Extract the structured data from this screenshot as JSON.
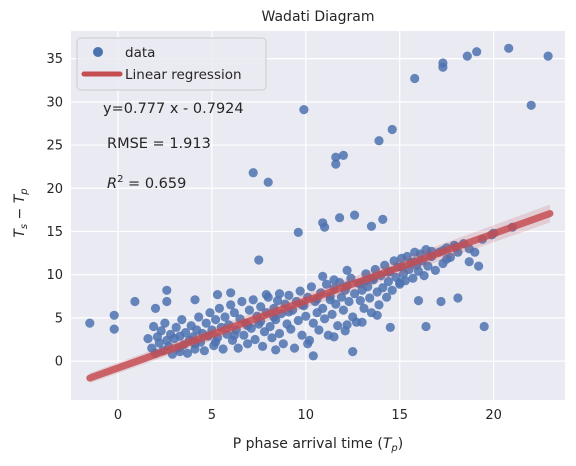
{
  "chart_data": {
    "type": "scatter",
    "title": "Wadati Diagram",
    "xlabel_main": "P phase arrival time (",
    "xlabel_sym": "T",
    "xlabel_sub": "p",
    "xlabel_end": ")",
    "ylabel_t1": "T",
    "ylabel_s1": "s",
    "ylabel_minus": " − ",
    "ylabel_t2": "T",
    "ylabel_s2": "p",
    "xlim": [
      -2.5,
      23.8
    ],
    "ylim": [
      -4.5,
      38.2
    ],
    "xticks": [
      0,
      5,
      10,
      15,
      20
    ],
    "yticks": [
      0,
      5,
      10,
      15,
      20,
      25,
      30,
      35
    ],
    "grid": true,
    "legend": {
      "placement": "top-left",
      "entries": [
        {
          "label": "data",
          "kind": "marker",
          "color": "#4c72b0"
        },
        {
          "label": "Linear regression",
          "kind": "line",
          "color": "#c44e52"
        }
      ]
    },
    "annotations": {
      "equation": "y=0.777 x - 0.7924",
      "rmse": "RMSE = 1.913",
      "r2_symbol": "R",
      "r2_exp": "2",
      "r2_value": " = 0.659"
    },
    "regression": {
      "slope": 0.777,
      "intercept": -0.7924,
      "x_range": [
        -1.5,
        23
      ]
    },
    "colors": {
      "points": "#4c72b0",
      "line": "#c44e52",
      "background": "#eaeaf2",
      "grid": "#ffffff"
    },
    "series": [
      {
        "name": "data",
        "points": [
          [
            -1.5,
            4.4
          ],
          [
            -0.2,
            5.3
          ],
          [
            -0.2,
            3.7
          ],
          [
            0.9,
            6.9
          ],
          [
            7.2,
            21.8
          ],
          [
            8.0,
            20.7
          ],
          [
            9.6,
            14.9
          ],
          [
            9.9,
            29.1
          ],
          [
            10.9,
            16.0
          ],
          [
            11.0,
            15.5
          ],
          [
            11.6,
            22.8
          ],
          [
            11.6,
            23.6
          ],
          [
            11.8,
            16.6
          ],
          [
            12.0,
            23.8
          ],
          [
            12.6,
            16.9
          ],
          [
            13.5,
            15.6
          ],
          [
            13.9,
            25.5
          ],
          [
            14.1,
            16.4
          ],
          [
            14.6,
            26.8
          ],
          [
            15.8,
            32.7
          ],
          [
            17.3,
            34.5
          ],
          [
            17.3,
            34.0
          ],
          [
            18.6,
            35.3
          ],
          [
            19.1,
            35.8
          ],
          [
            20.8,
            36.2
          ],
          [
            22.0,
            29.6
          ],
          [
            22.9,
            35.3
          ],
          [
            21.0,
            15.5
          ],
          [
            20.0,
            14.8
          ],
          [
            19.9,
            14.6
          ],
          [
            19.5,
            4.0
          ],
          [
            18.1,
            7.3
          ],
          [
            17.2,
            6.9
          ],
          [
            16.4,
            4.0
          ],
          [
            16.0,
            7.0
          ],
          [
            7.5,
            11.7
          ],
          [
            2.6,
            8.2
          ],
          [
            2.0,
            6.1
          ],
          [
            2.6,
            6.9
          ],
          [
            4.1,
            7.1
          ],
          [
            5.3,
            7.7
          ],
          [
            6.0,
            7.9
          ],
          [
            7.9,
            7.7
          ],
          [
            8.6,
            7.8
          ],
          [
            10.9,
            9.8
          ],
          [
            11.5,
            9.4
          ],
          [
            12.2,
            10.5
          ],
          [
            13.2,
            9.3
          ],
          [
            15.0,
            9.1
          ],
          [
            16.7,
            12.7
          ],
          [
            17.5,
            11.8
          ],
          [
            18.7,
            11.5
          ],
          [
            19.2,
            11.0
          ],
          [
            10.4,
            0.6
          ],
          [
            12.5,
            1.1
          ],
          [
            8.4,
            1.3
          ],
          [
            11.5,
            2.8
          ],
          [
            10.1,
            2.0
          ],
          [
            14.5,
            3.9
          ],
          [
            13.0,
            4.5
          ],
          [
            13.8,
            5.3
          ],
          [
            12.2,
            4.2
          ],
          [
            1.6,
            2.6
          ],
          [
            1.8,
            1.5
          ],
          [
            1.9,
            4.0
          ],
          [
            2.0,
            0.9
          ],
          [
            2.1,
            2.8
          ],
          [
            2.2,
            2.1
          ],
          [
            2.3,
            3.5
          ],
          [
            2.4,
            1.2
          ],
          [
            2.5,
            4.4
          ],
          [
            2.6,
            2.4
          ],
          [
            2.7,
            1.7
          ],
          [
            2.8,
            3.1
          ],
          [
            2.9,
            0.8
          ],
          [
            3.0,
            2.6
          ],
          [
            3.1,
            3.9
          ],
          [
            3.2,
            1.5
          ],
          [
            3.3,
            2.9
          ],
          [
            3.4,
            4.8
          ],
          [
            3.5,
            1.9
          ],
          [
            3.6,
            3.3
          ],
          [
            3.7,
            0.9
          ],
          [
            3.8,
            2.4
          ],
          [
            3.9,
            4.1
          ],
          [
            4.0,
            2.8
          ],
          [
            4.1,
            1.4
          ],
          [
            4.2,
            3.6
          ],
          [
            4.3,
            5.1
          ],
          [
            4.4,
            2.2
          ],
          [
            4.5,
            3.2
          ],
          [
            4.6,
            1.2
          ],
          [
            4.7,
            4.4
          ],
          [
            4.8,
            2.9
          ],
          [
            4.9,
            5.6
          ],
          [
            5.0,
            3.6
          ],
          [
            5.1,
            1.8
          ],
          [
            5.2,
            4.8
          ],
          [
            5.3,
            2.7
          ],
          [
            5.4,
            6.1
          ],
          [
            5.5,
            3.9
          ],
          [
            5.6,
            1.4
          ],
          [
            5.7,
            5.1
          ],
          [
            5.8,
            3.1
          ],
          [
            5.9,
            4.2
          ],
          [
            6.0,
            6.5
          ],
          [
            6.1,
            2.4
          ],
          [
            6.2,
            5.6
          ],
          [
            6.3,
            3.6
          ],
          [
            6.4,
            1.5
          ],
          [
            6.5,
            4.9
          ],
          [
            6.6,
            6.9
          ],
          [
            6.7,
            3.0
          ],
          [
            6.8,
            4.4
          ],
          [
            6.9,
            2.0
          ],
          [
            7.0,
            5.9
          ],
          [
            7.1,
            3.8
          ],
          [
            7.2,
            7.1
          ],
          [
            7.3,
            2.5
          ],
          [
            7.4,
            5.2
          ],
          [
            7.5,
            4.3
          ],
          [
            7.6,
            6.3
          ],
          [
            7.7,
            1.7
          ],
          [
            7.8,
            3.4
          ],
          [
            7.9,
            5.6
          ],
          [
            8.0,
            7.4
          ],
          [
            8.1,
            4.0
          ],
          [
            8.2,
            2.7
          ],
          [
            8.3,
            6.1
          ],
          [
            8.4,
            4.8
          ],
          [
            8.5,
            7.0
          ],
          [
            8.6,
            3.2
          ],
          [
            8.7,
            5.5
          ],
          [
            8.8,
            2.0
          ],
          [
            8.9,
            6.6
          ],
          [
            9.0,
            4.3
          ],
          [
            9.1,
            7.6
          ],
          [
            9.2,
            3.7
          ],
          [
            9.3,
            5.9
          ],
          [
            9.4,
            1.5
          ],
          [
            9.5,
            6.9
          ],
          [
            9.6,
            4.7
          ],
          [
            9.7,
            8.1
          ],
          [
            9.8,
            3.0
          ],
          [
            9.9,
            6.4
          ],
          [
            10.0,
            5.2
          ],
          [
            10.1,
            7.4
          ],
          [
            10.2,
            2.4
          ],
          [
            10.3,
            8.6
          ],
          [
            10.4,
            4.4
          ],
          [
            10.5,
            6.9
          ],
          [
            10.6,
            5.6
          ],
          [
            10.7,
            3.6
          ],
          [
            10.8,
            7.9
          ],
          [
            10.9,
            6.1
          ],
          [
            11.0,
            4.9
          ],
          [
            11.1,
            8.9
          ],
          [
            11.2,
            3.0
          ],
          [
            11.3,
            7.1
          ],
          [
            11.4,
            5.4
          ],
          [
            11.5,
            8.4
          ],
          [
            11.6,
            6.6
          ],
          [
            11.7,
            4.1
          ],
          [
            11.8,
            9.1
          ],
          [
            11.9,
            7.4
          ],
          [
            12.0,
            5.9
          ],
          [
            12.1,
            3.5
          ],
          [
            12.2,
            8.7
          ],
          [
            12.3,
            6.9
          ],
          [
            12.4,
            9.6
          ],
          [
            12.5,
            5.1
          ],
          [
            12.6,
            7.8
          ],
          [
            12.7,
            4.5
          ],
          [
            12.8,
            9.0
          ],
          [
            12.9,
            7.0
          ],
          [
            13.0,
            8.2
          ],
          [
            13.1,
            6.1
          ],
          [
            13.2,
            10.1
          ],
          [
            13.3,
            8.6
          ],
          [
            13.4,
            7.3
          ],
          [
            13.5,
            5.6
          ],
          [
            13.6,
            9.4
          ],
          [
            13.7,
            10.6
          ],
          [
            13.8,
            8.0
          ],
          [
            13.9,
            6.5
          ],
          [
            14.0,
            9.9
          ],
          [
            14.1,
            8.5
          ],
          [
            14.2,
            11.1
          ],
          [
            14.3,
            7.4
          ],
          [
            14.4,
            9.2
          ],
          [
            14.5,
            10.4
          ],
          [
            14.6,
            8.2
          ],
          [
            14.7,
            11.6
          ],
          [
            14.8,
            9.7
          ],
          [
            14.9,
            10.9
          ],
          [
            15.0,
            8.9
          ],
          [
            15.1,
            11.9
          ],
          [
            15.2,
            10.1
          ],
          [
            15.3,
            9.3
          ],
          [
            15.4,
            12.1
          ],
          [
            15.5,
            10.6
          ],
          [
            15.6,
            11.4
          ],
          [
            15.7,
            9.6
          ],
          [
            15.8,
            12.6
          ],
          [
            15.9,
            11.1
          ],
          [
            16.0,
            10.4
          ],
          [
            16.1,
            12.4
          ],
          [
            16.2,
            11.6
          ],
          [
            16.3,
            9.9
          ],
          [
            16.4,
            12.9
          ],
          [
            16.5,
            11.0
          ],
          [
            16.7,
            12.1
          ],
          [
            16.9,
            10.5
          ],
          [
            17.1,
            12.6
          ],
          [
            17.3,
            11.3
          ],
          [
            17.5,
            13.1
          ],
          [
            17.7,
            12.0
          ],
          [
            17.9,
            13.4
          ],
          [
            18.1,
            12.6
          ],
          [
            18.4,
            13.6
          ],
          [
            18.7,
            13.0
          ],
          [
            19.0,
            12.6
          ],
          [
            19.4,
            14.1
          ],
          [
            3.3,
            1.1
          ],
          [
            4.1,
            2.0
          ],
          [
            5.2,
            2.2
          ],
          [
            6.2,
            3.0
          ],
          [
            6.9,
            4.1
          ],
          [
            7.6,
            4.6
          ],
          [
            8.3,
            5.1
          ],
          [
            9.1,
            5.7
          ],
          [
            9.8,
            6.5
          ],
          [
            10.6,
            7.2
          ],
          [
            11.3,
            7.5
          ],
          [
            12.1,
            8.2
          ],
          [
            12.9,
            9.0
          ],
          [
            13.6,
            9.6
          ],
          [
            14.4,
            10.3
          ],
          [
            15.1,
            10.9
          ],
          [
            15.8,
            11.5
          ],
          [
            16.6,
            12.2
          ],
          [
            17.3,
            12.8
          ],
          [
            18.0,
            13.2
          ]
        ]
      }
    ]
  }
}
